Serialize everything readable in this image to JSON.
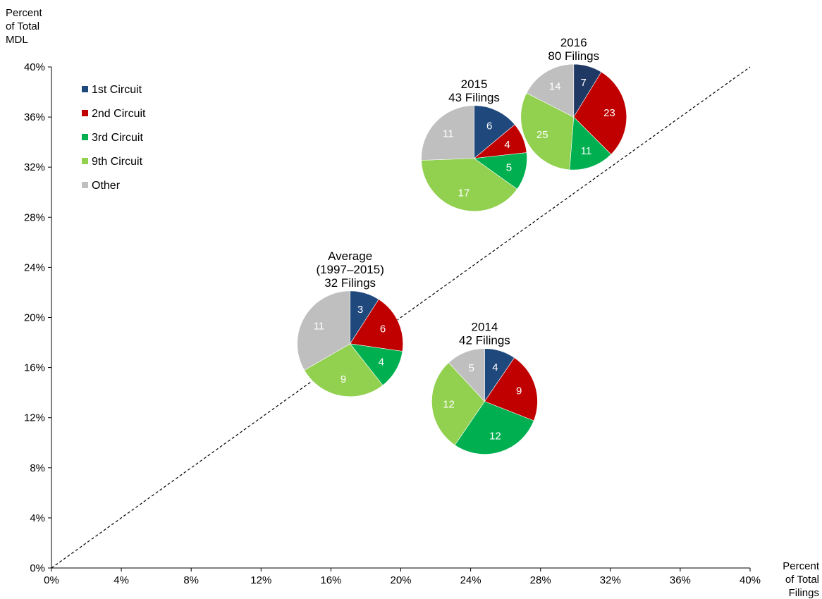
{
  "chart_data": {
    "type": "scatter",
    "subtype": "pie-scatter",
    "ylabel_lines": [
      "Percent",
      "of Total",
      "MDL"
    ],
    "xlabel_lines": [
      "Percent",
      "of Total",
      "Filings"
    ],
    "xlim": [
      0,
      40
    ],
    "ylim": [
      0,
      40
    ],
    "x_ticks": [
      "0%",
      "4%",
      "8%",
      "12%",
      "16%",
      "20%",
      "24%",
      "28%",
      "32%",
      "36%",
      "40%"
    ],
    "y_ticks": [
      "0%",
      "4%",
      "8%",
      "12%",
      "16%",
      "20%",
      "24%",
      "28%",
      "32%",
      "36%",
      "40%"
    ],
    "reference_line": "diagonal y = x, dashed",
    "legend": {
      "position": "top-left",
      "items": [
        {
          "name": "1st Circuit",
          "color": "#1f497d"
        },
        {
          "name": "2nd Circuit",
          "color": "#c00000"
        },
        {
          "name": "3rd Circuit",
          "color": "#00b050"
        },
        {
          "name": "9th Circuit",
          "color": "#92d050"
        },
        {
          "name": "Other",
          "color": "#bfbfbf"
        }
      ]
    },
    "pies": [
      {
        "title_lines": [
          "Average",
          "(1997–2015)",
          "32 Filings"
        ],
        "x": 17.1,
        "y": 17.9,
        "slices": [
          {
            "name": "1st Circuit",
            "value": 3,
            "label": "3",
            "color": "#1f497d"
          },
          {
            "name": "2nd Circuit",
            "value": 6,
            "label": "6",
            "color": "#c00000"
          },
          {
            "name": "3rd Circuit",
            "value": 4,
            "label": "4",
            "color": "#00b050"
          },
          {
            "name": "9th Circuit",
            "value": 9,
            "label": "9",
            "color": "#92d050"
          },
          {
            "name": "Other",
            "value": 11,
            "label": "11",
            "color": "#bfbfbf"
          }
        ]
      },
      {
        "title_lines": [
          "2014",
          "42 Filings"
        ],
        "x": 24.8,
        "y": 13.3,
        "slices": [
          {
            "name": "1st Circuit",
            "value": 4,
            "label": "4",
            "color": "#1f497d"
          },
          {
            "name": "2nd Circuit",
            "value": 9,
            "label": "9",
            "color": "#c00000"
          },
          {
            "name": "3rd Circuit",
            "value": 12,
            "label": "12",
            "color": "#00b050"
          },
          {
            "name": "9th Circuit",
            "value": 12,
            "label": "12",
            "color": "#92d050"
          },
          {
            "name": "Other",
            "value": 5,
            "label": "5",
            "color": "#bfbfbf"
          }
        ]
      },
      {
        "title_lines": [
          "2015",
          "43 Filings"
        ],
        "x": 24.2,
        "y": 32.7,
        "slices": [
          {
            "name": "1st Circuit",
            "value": 6,
            "label": "6",
            "color": "#1f497d"
          },
          {
            "name": "2nd Circuit",
            "value": 4,
            "label": "4",
            "color": "#c00000"
          },
          {
            "name": "3rd Circuit",
            "value": 5,
            "label": "5",
            "color": "#00b050"
          },
          {
            "name": "9th Circuit",
            "value": 17,
            "label": "17",
            "color": "#92d050"
          },
          {
            "name": "Other",
            "value": 11,
            "label": "11",
            "color": "#bfbfbf"
          }
        ]
      },
      {
        "title_lines": [
          "2016",
          "80 Filings"
        ],
        "x": 29.9,
        "y": 36.0,
        "slices": [
          {
            "name": "1st Circuit",
            "value": 7,
            "label": "7",
            "color": "#1f3864"
          },
          {
            "name": "2nd Circuit",
            "value": 23,
            "label": "23",
            "color": "#c00000"
          },
          {
            "name": "3rd Circuit",
            "value": 11,
            "label": "11",
            "color": "#00b050"
          },
          {
            "name": "9th Circuit",
            "value": 25,
            "label": "25",
            "color": "#92d050"
          },
          {
            "name": "Other",
            "value": 14,
            "label": "14",
            "color": "#bfbfbf"
          }
        ]
      }
    ]
  }
}
